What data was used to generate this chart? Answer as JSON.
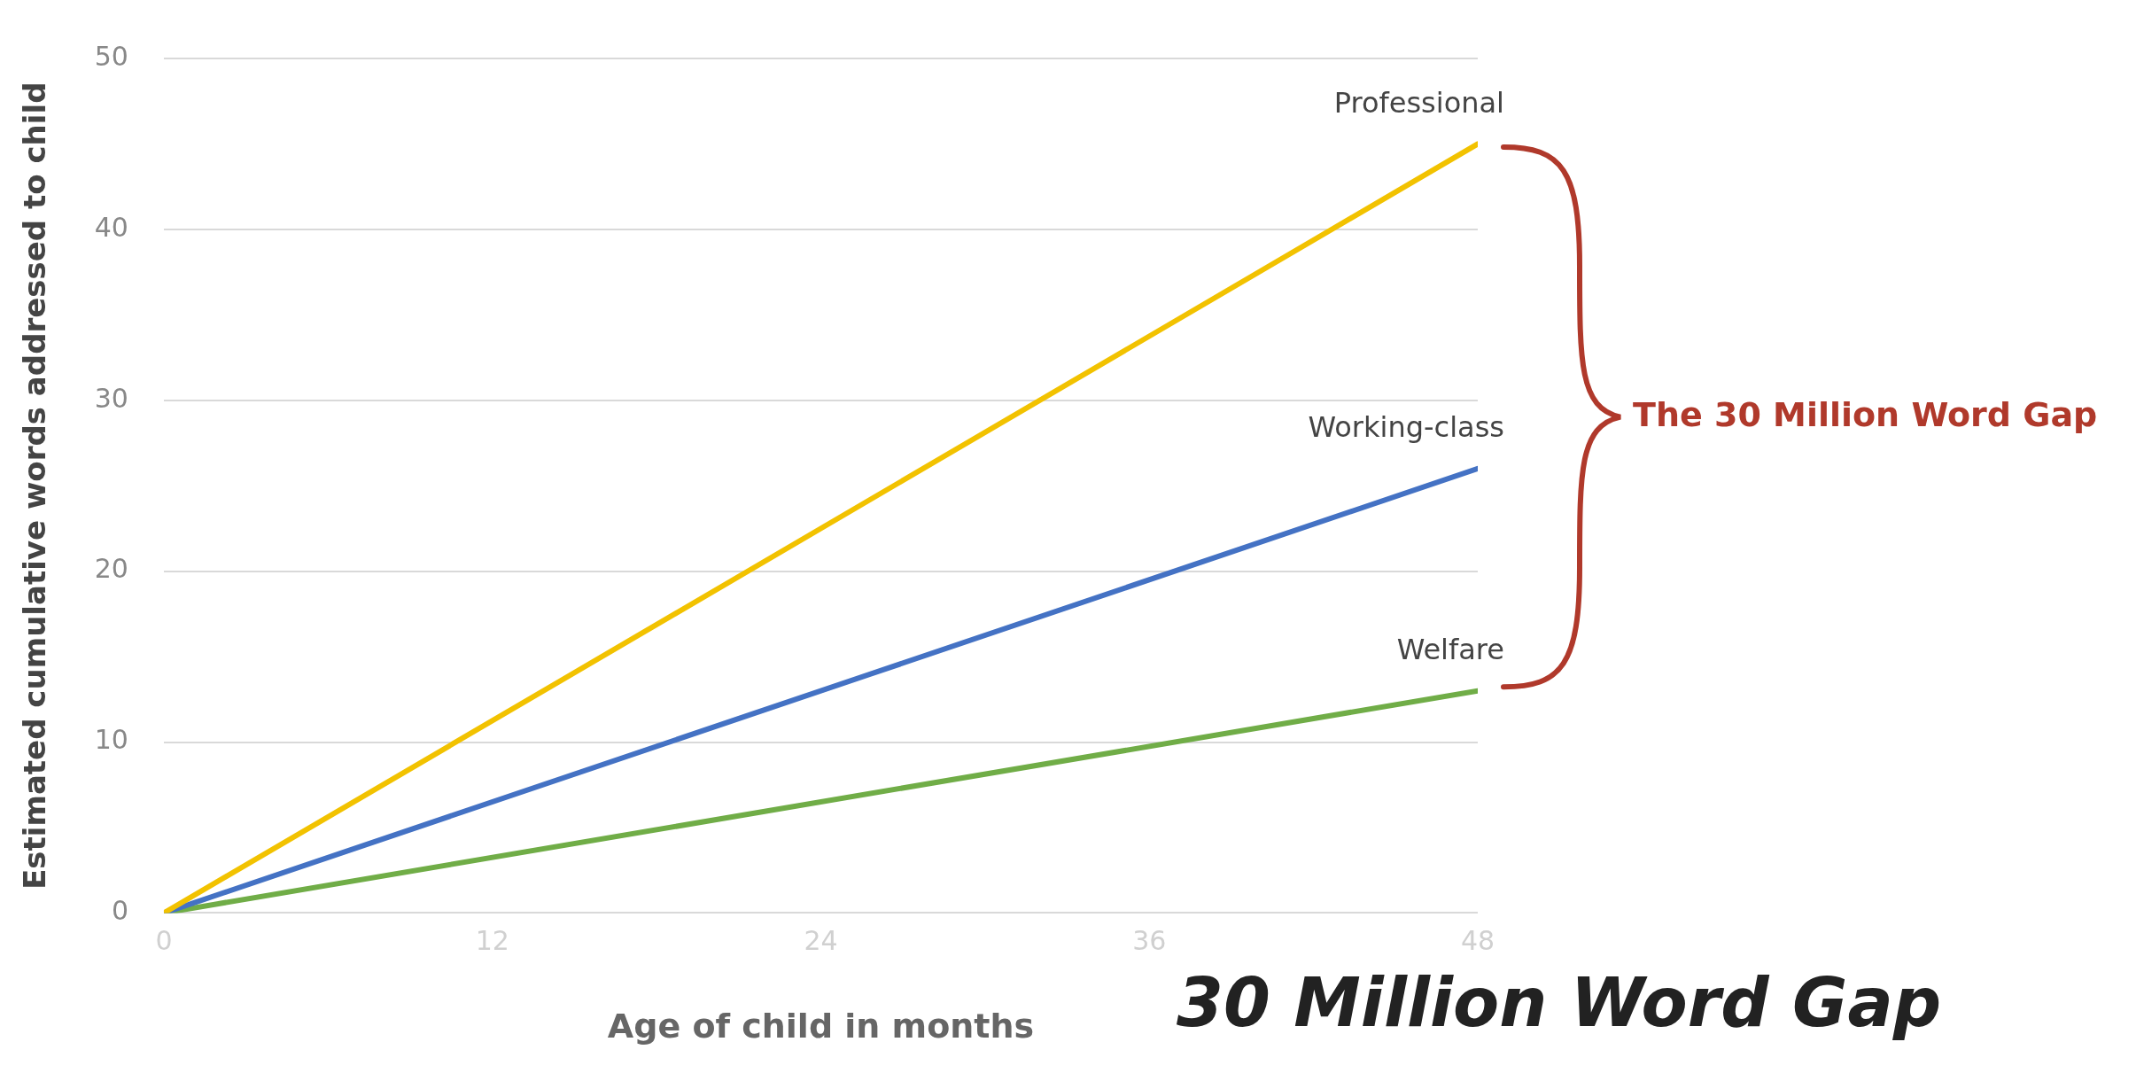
{
  "chart_data": {
    "type": "line",
    "xlabel": "Age of child in months",
    "ylabel": "Estimated cumulative words addressed to child",
    "x": [
      0,
      48
    ],
    "series": [
      {
        "name": "Professional",
        "color": "#f2c200",
        "values": [
          0,
          45
        ]
      },
      {
        "name": "Working-class",
        "color": "#4472c4",
        "values": [
          0,
          26
        ]
      },
      {
        "name": "Welfare",
        "color": "#70ad47",
        "values": [
          0,
          13
        ]
      }
    ],
    "xlim": [
      0,
      48
    ],
    "xticks": [
      0,
      12,
      24,
      36,
      48
    ],
    "ylim": [
      0,
      50
    ],
    "yticks": [
      0,
      10,
      20,
      30,
      40,
      50
    ],
    "grid": "y",
    "legend": false,
    "marker": "none",
    "line_style": "solid",
    "annotations": [
      "The 30 Million Word Gap",
      "30 Million Word Gap"
    ]
  }
}
